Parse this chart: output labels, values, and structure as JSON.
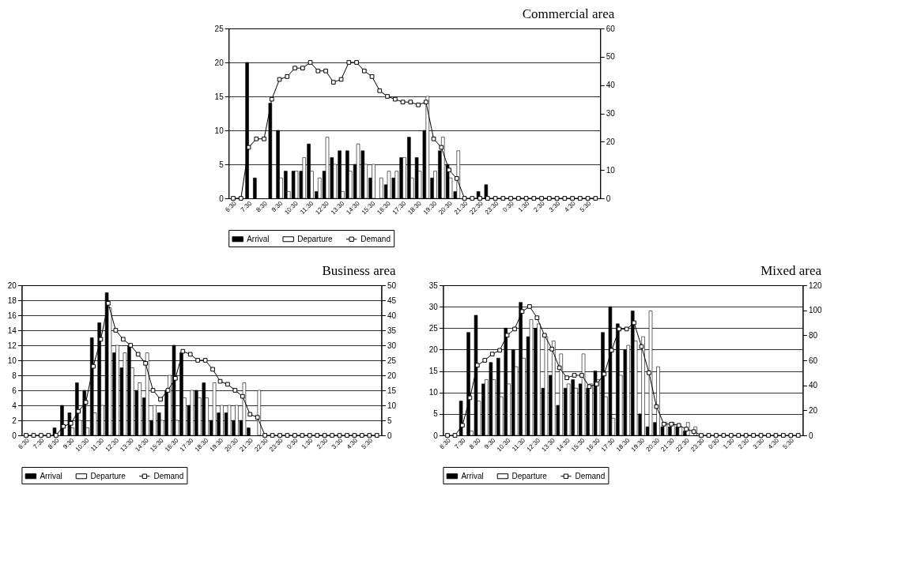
{
  "chart_data": [
    {
      "type": "bar",
      "title": "Commercial area",
      "categories": [
        "6:30",
        null,
        "7:30",
        null,
        "8:30",
        null,
        "9:30",
        null,
        "10:30",
        null,
        "11:30",
        null,
        "12:30",
        null,
        "13:30",
        null,
        "14:30",
        null,
        "15:30",
        null,
        "16:30",
        null,
        "17:30",
        null,
        "18:30",
        null,
        "19:30",
        null,
        "20:30",
        null,
        "21:30",
        null,
        "22:30",
        null,
        "23:30",
        null,
        "0:30",
        null,
        "1:30",
        null,
        "2:30",
        null,
        "3:30",
        null,
        "4:30",
        null,
        "5:30",
        null
      ],
      "ylim": [
        0,
        25
      ],
      "yticks": [
        0,
        5,
        10,
        15,
        20,
        25
      ],
      "y2lim": [
        0,
        60
      ],
      "y2ticks": [
        0,
        10,
        20,
        30,
        40,
        50,
        60
      ],
      "grid": "y",
      "legend": "bottom",
      "marker": "square",
      "series": [
        {
          "name": "Arrival",
          "color": "#000000",
          "values": [
            0,
            0,
            20,
            3,
            0,
            14,
            10,
            4,
            4,
            4,
            8,
            1,
            4,
            6,
            7,
            7,
            5,
            7,
            3,
            0,
            2,
            3,
            6,
            9,
            6,
            10,
            3,
            7,
            5,
            1,
            0,
            0,
            1,
            2,
            0,
            0,
            0,
            0,
            0,
            0,
            0,
            0,
            0,
            0,
            0,
            0,
            0,
            0
          ]
        },
        {
          "name": "Departure",
          "color": "#ffffff",
          "values": [
            0,
            0,
            0,
            0,
            0,
            0,
            3,
            1,
            4,
            6,
            4,
            3,
            9,
            5,
            1,
            4,
            8,
            5,
            5,
            3,
            4,
            4,
            6,
            3,
            4,
            15,
            4,
            9,
            3,
            7,
            0,
            0,
            0,
            0,
            0,
            0,
            0,
            0,
            0,
            0,
            0,
            0,
            0,
            0,
            0,
            0,
            0,
            0
          ]
        },
        {
          "name": "Demand",
          "type": "line",
          "axis": "y2",
          "color": "#000000",
          "values": [
            0,
            0,
            18,
            21,
            21,
            35,
            42,
            43,
            46,
            46,
            48,
            45,
            45,
            41,
            42,
            48,
            48,
            45,
            43,
            38,
            36,
            35,
            34,
            34,
            33,
            34,
            21,
            18,
            10,
            7,
            0,
            0,
            0,
            0,
            0,
            0,
            0,
            0,
            0,
            0,
            0,
            0,
            0,
            0,
            0,
            0,
            0,
            0
          ]
        }
      ]
    },
    {
      "type": "bar",
      "title": "Business area",
      "categories": [
        "6:30",
        null,
        "7:30",
        null,
        "8:30",
        null,
        "9:30",
        null,
        "10:30",
        null,
        "11:30",
        null,
        "12:30",
        null,
        "13:30",
        null,
        "14:30",
        null,
        "15:30",
        null,
        "16:30",
        null,
        "17:30",
        null,
        "18:30",
        null,
        "19:30",
        null,
        "20:30",
        null,
        "21:30",
        null,
        "22:30",
        null,
        "23:30",
        null,
        "0:30",
        null,
        "1:30",
        null,
        "2:30",
        null,
        "3:30",
        null,
        "4:30",
        null,
        "5:30",
        null
      ],
      "ylim": [
        0,
        20
      ],
      "yticks": [
        0,
        2,
        4,
        6,
        8,
        10,
        12,
        14,
        16,
        18,
        20
      ],
      "y2lim": [
        0,
        50
      ],
      "y2ticks": [
        0,
        5,
        10,
        15,
        20,
        25,
        30,
        35,
        40,
        45,
        50
      ],
      "grid": "y",
      "legend": "bottom",
      "marker": "square",
      "series": [
        {
          "name": "Arrival",
          "color": "#000000",
          "values": [
            0,
            0,
            0,
            0,
            1,
            4,
            3,
            7,
            6,
            13,
            15,
            19,
            11,
            9,
            12,
            6,
            5,
            2,
            3,
            6,
            12,
            11,
            4,
            6,
            7,
            2,
            3,
            3,
            2,
            2,
            1,
            0,
            0,
            0,
            0,
            0,
            0,
            0,
            0,
            0,
            0,
            0,
            0,
            0,
            0,
            0,
            0,
            0
          ]
        },
        {
          "name": "Departure",
          "color": "#ffffff",
          "values": [
            0,
            0,
            0,
            0,
            0,
            0,
            1,
            2,
            1,
            3,
            4,
            17,
            12,
            11,
            9,
            7,
            11,
            4,
            2,
            8,
            2,
            5,
            6,
            5,
            5,
            7,
            4,
            4,
            4,
            7,
            0,
            6,
            0,
            0,
            0,
            0,
            0,
            0,
            0,
            0,
            0,
            0,
            0,
            0,
            0,
            0,
            0,
            0
          ]
        },
        {
          "name": "Demand",
          "type": "line",
          "axis": "y2",
          "color": "#000000",
          "values": [
            0,
            0,
            0,
            0,
            0,
            3,
            4,
            8,
            11,
            23,
            32,
            44,
            35,
            32,
            30,
            27,
            24,
            15,
            12,
            15,
            19,
            28,
            27,
            25,
            25,
            22,
            18,
            17,
            15,
            13,
            7,
            6,
            0,
            0,
            0,
            0,
            0,
            0,
            0,
            0,
            0,
            0,
            0,
            0,
            0,
            0,
            0,
            0
          ]
        }
      ]
    },
    {
      "type": "bar",
      "title": "Mixed area",
      "categories": [
        "6:30",
        null,
        "7:30",
        null,
        "8:30",
        null,
        "9:30",
        null,
        "10:30",
        null,
        "11:30",
        null,
        "12:30",
        null,
        "13:30",
        null,
        "14:30",
        null,
        "15:30",
        null,
        "16:30",
        null,
        "17:30",
        null,
        "18:30",
        null,
        "19:30",
        null,
        "20:30",
        null,
        "21:30",
        null,
        "22:30",
        null,
        "23:30",
        null,
        "0:30",
        null,
        "1:30",
        null,
        "2:30",
        null,
        "3:30",
        null,
        "4:30",
        null,
        "5:30",
        null
      ],
      "ylim": [
        0,
        35
      ],
      "yticks": [
        0,
        5,
        10,
        15,
        20,
        25,
        30,
        35
      ],
      "y2lim": [
        0,
        120
      ],
      "y2ticks": [
        0,
        20,
        40,
        60,
        80,
        100,
        120
      ],
      "grid": "y",
      "legend": "bottom",
      "marker": "square",
      "series": [
        {
          "name": "Arrival",
          "color": "#000000",
          "values": [
            0,
            0,
            8,
            24,
            28,
            12,
            17,
            18,
            25,
            20,
            31,
            23,
            25,
            11,
            14,
            7,
            11,
            13,
            12,
            11,
            15,
            24,
            30,
            26,
            20,
            29,
            5,
            2,
            3,
            2,
            2,
            2,
            1,
            0,
            0,
            0,
            0,
            0,
            0,
            0,
            0,
            0,
            0,
            0,
            0,
            0,
            0,
            0
          ]
        },
        {
          "name": "Departure",
          "color": "#ffffff",
          "values": [
            0,
            0,
            0,
            1,
            8,
            13,
            13,
            9,
            12,
            16,
            18,
            27,
            26,
            23,
            22,
            19,
            12,
            11,
            19,
            12,
            13,
            9,
            4,
            14,
            21,
            22,
            23,
            29,
            16,
            3,
            3,
            2,
            3,
            2,
            0,
            0,
            0,
            0,
            0,
            0,
            0,
            0,
            0,
            0,
            0,
            0,
            0,
            0
          ]
        },
        {
          "name": "Demand",
          "type": "line",
          "axis": "y2",
          "color": "#000000",
          "values": [
            0,
            0,
            8,
            30,
            56,
            60,
            65,
            68,
            80,
            85,
            99,
            103,
            94,
            80,
            69,
            54,
            46,
            48,
            48,
            39,
            41,
            49,
            68,
            85,
            85,
            90,
            71,
            50,
            23,
            9,
            9,
            8,
            5,
            3,
            0,
            0,
            0,
            0,
            0,
            0,
            0,
            0,
            0,
            0,
            0,
            0,
            0,
            0
          ]
        }
      ]
    }
  ]
}
